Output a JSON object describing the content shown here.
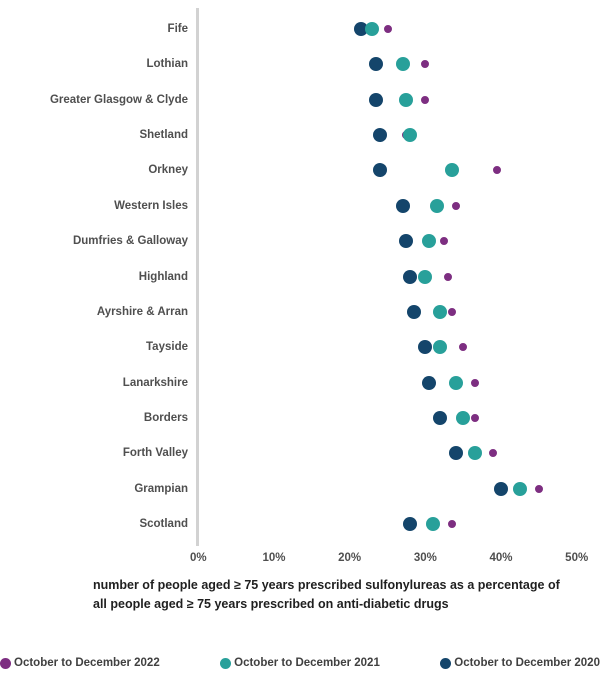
{
  "chart_data": {
    "type": "scatter",
    "subtype": "horizontal-dot-plot",
    "categories": [
      "Fife",
      "Lothian",
      "Greater Glasgow & Clyde",
      "Shetland",
      "Orkney",
      "Western Isles",
      "Dumfries & Galloway",
      "Highland",
      "Ayrshire & Arran",
      "Tayside",
      "Lanarkshire",
      "Borders",
      "Forth Valley",
      "Grampian",
      "Scotland"
    ],
    "series": [
      {
        "name": "October to December 2022",
        "color": "#7d2e81",
        "marker": "ring",
        "values": [
          25,
          30,
          30,
          27.5,
          39.5,
          34,
          32.5,
          33,
          33.5,
          35,
          36.5,
          36.5,
          39,
          45,
          33.5
        ]
      },
      {
        "name": "October to December 2021",
        "color": "#28a09a",
        "marker": "circle",
        "values": [
          23,
          27,
          27.5,
          28,
          33.5,
          31.5,
          30.5,
          30,
          32,
          32,
          34,
          35,
          36.5,
          42.5,
          31
        ]
      },
      {
        "name": "October to December 2020",
        "color": "#14456b",
        "marker": "circle",
        "values": [
          21.5,
          23.5,
          23.5,
          24,
          24,
          27,
          27.5,
          28,
          28.5,
          30,
          30.5,
          32,
          34,
          40,
          28
        ]
      }
    ],
    "x_axis": {
      "min": 0,
      "max": 50,
      "unit": "%",
      "ticks": [
        "0%",
        "10%",
        "20%",
        "30%",
        "40%",
        "50%"
      ],
      "grid": false
    },
    "caption": "number of people aged ≥ 75 years prescribed sulfonylureas as a percentage of all people aged ≥ 75 years prescribed on anti-diabetic drugs",
    "legend_position": "bottom"
  }
}
